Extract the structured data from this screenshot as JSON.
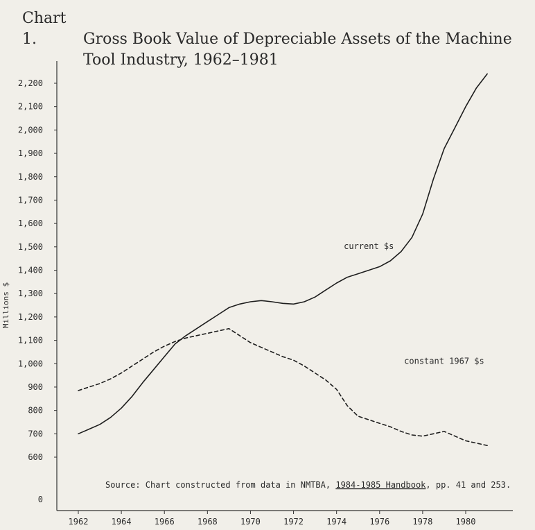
{
  "title": {
    "number": "Chart 1.",
    "line1": "Gross Book Value of Depreciable Assets of the Machine",
    "line2": "Tool Industry, 1962–1981"
  },
  "chart_data": {
    "type": "line",
    "title": "Chart 1. Gross Book Value of Depreciable Assets of the Machine Tool Industry, 1962–1981",
    "ylabel": "Millions $",
    "xlabel": "",
    "ylim": [
      0,
      2250
    ],
    "y_break": true,
    "y_ticks": [
      0,
      600,
      700,
      800,
      900,
      1000,
      1100,
      1200,
      1300,
      1400,
      1500,
      1600,
      1700,
      1800,
      1900,
      2000,
      2100,
      2200
    ],
    "y_tick_labels": [
      "0",
      "600",
      "700",
      "800",
      "900",
      "1,000",
      "1,100",
      "1,200",
      "1,300",
      "1,400",
      "1,500",
      "1,600",
      "1,700",
      "1,800",
      "1,900",
      "2,000",
      "2,100",
      "2,200"
    ],
    "x_ticks": [
      1962,
      1964,
      1966,
      1968,
      1970,
      1972,
      1974,
      1976,
      1978,
      1980
    ],
    "x_tick_labels": [
      "1962",
      "1964",
      "1966",
      "1968",
      "1970",
      "1972",
      "1974",
      "1976",
      "1978",
      "1980"
    ],
    "grid": false,
    "series": [
      {
        "name": "current $s",
        "style": "solid",
        "x": [
          1962,
          1962.5,
          1963,
          1963.5,
          1964,
          1964.5,
          1965,
          1965.5,
          1966,
          1966.5,
          1967,
          1967.5,
          1968,
          1968.5,
          1969,
          1969.5,
          1970,
          1970.5,
          1971,
          1971.5,
          1972,
          1972.5,
          1973,
          1973.5,
          1974,
          1974.5,
          1975,
          1975.5,
          1976,
          1976.5,
          1977,
          1977.5,
          1978,
          1978.5,
          1979,
          1979.5,
          1980,
          1980.5,
          1981
        ],
        "y": [
          700,
          720,
          740,
          770,
          810,
          860,
          920,
          975,
          1030,
          1085,
          1120,
          1150,
          1180,
          1210,
          1240,
          1255,
          1265,
          1270,
          1265,
          1258,
          1255,
          1265,
          1285,
          1315,
          1345,
          1370,
          1385,
          1400,
          1415,
          1440,
          1480,
          1540,
          1640,
          1790,
          1920,
          2010,
          2100,
          2180,
          2240
        ]
      },
      {
        "name": "constant 1967 $s",
        "style": "dashed",
        "x": [
          1962,
          1962.5,
          1963,
          1963.5,
          1964,
          1964.5,
          1965,
          1965.5,
          1966,
          1966.5,
          1967,
          1967.5,
          1968,
          1968.5,
          1969,
          1969.5,
          1970,
          1970.5,
          1971,
          1971.5,
          1972,
          1972.5,
          1973,
          1973.5,
          1974,
          1974.5,
          1975,
          1975.5,
          1976,
          1976.5,
          1977,
          1977.5,
          1978,
          1978.5,
          1979,
          1979.5,
          1980,
          1980.5,
          1981
        ],
        "y": [
          885,
          900,
          915,
          935,
          960,
          990,
          1020,
          1050,
          1075,
          1095,
          1110,
          1120,
          1130,
          1140,
          1150,
          1120,
          1090,
          1070,
          1050,
          1030,
          1015,
          990,
          960,
          930,
          890,
          820,
          775,
          760,
          745,
          730,
          710,
          695,
          690,
          700,
          710,
          690,
          670,
          660,
          650
        ]
      }
    ],
    "annotations": [
      {
        "text": "current $s",
        "x": 1975.5,
        "y": 1490
      },
      {
        "text": "constant 1967 $s",
        "x": 1979,
        "y": 1000
      }
    ],
    "source_prefix": "Source:  Chart constructed from data in NMTBA, ",
    "source_title": "1984-1985 Handbook",
    "source_suffix": ", pp. 41 and 253."
  }
}
